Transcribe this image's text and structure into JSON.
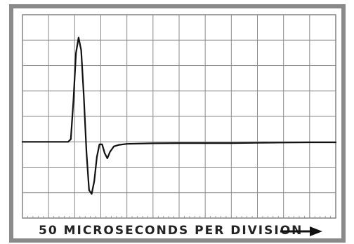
{
  "chart_data": {
    "type": "line",
    "title": "",
    "xlabel": "50 MICROSECONDS PER DIVISION",
    "ylabel": "",
    "x_unit_per_division": 50,
    "x_divisions": 12,
    "y_divisions": 8,
    "grid": true,
    "series": [
      {
        "values_in_divisions": [
          [
            0.0,
            1.0
          ],
          [
            1.75,
            1.0
          ],
          [
            1.85,
            1.1
          ],
          [
            1.95,
            2.6
          ],
          [
            2.05,
            4.5
          ],
          [
            2.15,
            5.1
          ],
          [
            2.25,
            4.6
          ],
          [
            2.35,
            2.8
          ],
          [
            2.45,
            0.6
          ],
          [
            2.55,
            -0.9
          ],
          [
            2.65,
            -1.05
          ],
          [
            2.75,
            -0.55
          ],
          [
            2.85,
            0.4
          ],
          [
            2.95,
            0.9
          ],
          [
            3.05,
            0.9
          ],
          [
            3.15,
            0.55
          ],
          [
            3.25,
            0.35
          ],
          [
            3.35,
            0.6
          ],
          [
            3.5,
            0.82
          ],
          [
            3.7,
            0.88
          ],
          [
            4.0,
            0.92
          ],
          [
            5.0,
            0.94
          ],
          [
            6.0,
            0.95
          ],
          [
            7.0,
            0.95
          ],
          [
            8.0,
            0.95
          ],
          [
            9.0,
            0.96
          ],
          [
            10.0,
            0.97
          ],
          [
            11.0,
            0.98
          ],
          [
            12.0,
            0.98
          ]
        ]
      }
    ]
  },
  "xlabel_arrow_icon": "right-arrow-icon"
}
